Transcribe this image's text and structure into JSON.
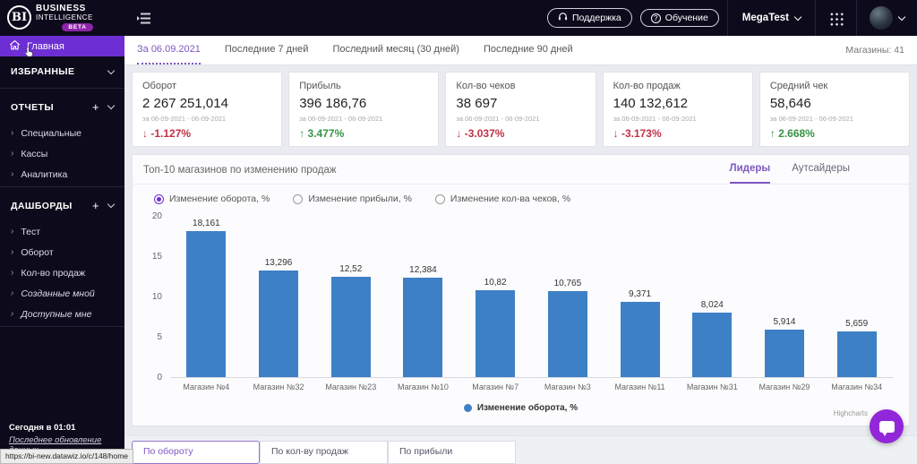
{
  "topbar": {
    "logo_mark": "BI",
    "logo_line1": "BUSINESS",
    "logo_line2": "INTELLIGENCE",
    "logo_badge": "BETA",
    "support_label": "Поддержка",
    "training_label": "Обучение",
    "account_label": "MegaTest"
  },
  "sidebar": {
    "home": "Главная",
    "favorites_label": "ИЗБРАННЫЕ",
    "reports_label": "ОТЧЕТЫ",
    "reports_items": [
      "Специальные",
      "Кассы",
      "Аналитика"
    ],
    "dashboards_label": "ДАШБОРДЫ",
    "dashboards_items": [
      "Тест",
      "Оборот",
      "Кол-во продаж"
    ],
    "dashboards_personal": [
      "Созданные мной",
      "Доступные мне"
    ],
    "footer_time": "Сегодня в 01:01",
    "footer_link": "Последнее обновление данных",
    "status_url": "https://bi-new.datawiz.io/c/148/home"
  },
  "period_tabs": {
    "items": [
      "За 06.09.2021",
      "Последние 7 дней",
      "Последний месяц (30 дней)",
      "Последние 90 дней"
    ],
    "stores": "Магазины: 41"
  },
  "kpi_cards": [
    {
      "title": "Оборот",
      "value": "2 267 251,014",
      "period": "за 06-09-2021 - 06-09-2021",
      "arrow": "↓",
      "change": "-1.127%",
      "direction": "down"
    },
    {
      "title": "Прибыль",
      "value": "396 186,76",
      "period": "за 06-09-2021 - 06-09-2021",
      "arrow": "↑",
      "change": "3.477%",
      "direction": "up"
    },
    {
      "title": "Кол-во чеков",
      "value": "38 697",
      "period": "за 06-09-2021 - 06-09-2021",
      "arrow": "↓",
      "change": "-3.037%",
      "direction": "down"
    },
    {
      "title": "Кол-во продаж",
      "value": "140 132,612",
      "period": "за 06-09-2021 - 06-09-2021",
      "arrow": "↓",
      "change": "-3.173%",
      "direction": "down"
    },
    {
      "title": "Средний чек",
      "value": "58,646",
      "period": "за 06-09-2021 - 06-09-2021",
      "arrow": "↑",
      "change": "2.668%",
      "direction": "up"
    }
  ],
  "chart_panel": {
    "title": "Топ-10 магазинов по изменению продаж",
    "tab_leaders": "Лидеры",
    "tab_outsiders": "Аутсайдеры",
    "radio_options": [
      "Изменение оборота, %",
      "Изменение прибыли, %",
      "Изменение кол-ва чеков, %"
    ],
    "legend_label": "Изменение оборота, %",
    "credit": "Highcharts"
  },
  "chart_data": {
    "type": "bar",
    "title": "Топ-10 магазинов по изменению продаж",
    "categories": [
      "Магазин №4",
      "Магазин №32",
      "Магазин №23",
      "Магазин №10",
      "Магазин №7",
      "Магазин №3",
      "Магазин №11",
      "Магазин №31",
      "Магазин №29",
      "Магазин №34"
    ],
    "values": [
      18.161,
      13.296,
      12.52,
      12.384,
      10.82,
      10.765,
      9.371,
      8.024,
      5.914,
      5.659
    ],
    "value_labels": [
      "18,161",
      "13,296",
      "12,52",
      "12,384",
      "10,82",
      "10,765",
      "9,371",
      "8,024",
      "5,914",
      "5,659"
    ],
    "series_name": "Изменение оборота, %",
    "xlabel": "",
    "ylabel": "",
    "ylim": [
      0,
      20
    ],
    "yticks": [
      0,
      5,
      10,
      15,
      20
    ],
    "grid": false,
    "legend_position": "bottom",
    "bar_color": "#3d80c6"
  },
  "bottom_tabs": [
    "По обороту",
    "По кол-ву продаж",
    "По прибыли"
  ],
  "colors": {
    "accent_purple": "#7e57c2",
    "sidebar_active": "#6d2fd4",
    "bar_blue": "#3d80c6",
    "up_green": "#359346",
    "down_red": "#c13045",
    "dark_bg": "#0d0b1b",
    "badge_purple": "#8e24aa"
  }
}
